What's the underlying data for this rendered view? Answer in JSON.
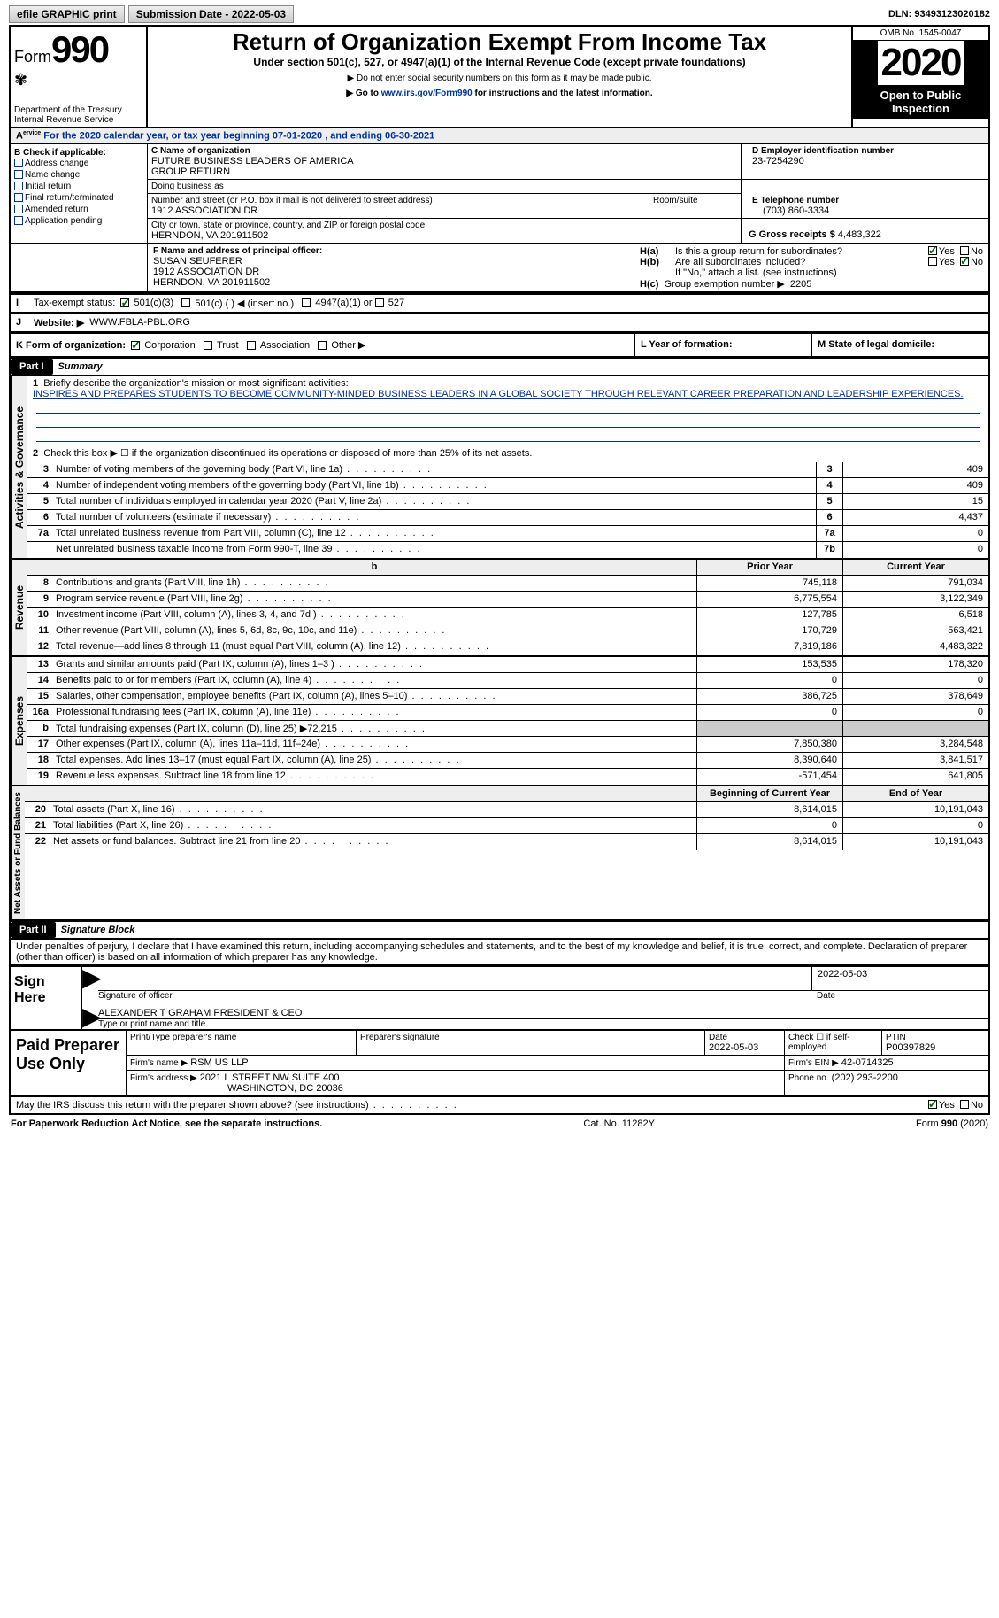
{
  "topbar": {
    "btn1": "efile GRAPHIC print",
    "btn2_label": "Submission Date -",
    "btn2_value": "2022-05-03",
    "dln_label": "DLN:",
    "dln_value": "93493123020182"
  },
  "header": {
    "form_prefix": "Form",
    "form_num": "990",
    "dept": "Department of the Treasury\nInternal Revenue Service",
    "title": "Return of Organization Exempt From Income Tax",
    "sub1": "Under section 501(c), 527, or 4947(a)(1) of the Internal Revenue Code (except private foundations)",
    "sub2": "▶ Do not enter social security numbers on this form as it may be made public.",
    "sub3a": "▶ Go to ",
    "sub3link": "www.irs.gov/Form990",
    "sub3b": " for instructions and the latest information.",
    "omb": "OMB No. 1545-0047",
    "year": "2020",
    "open": "Open to Public Inspection"
  },
  "line_a": "For the 2020 calendar year, or tax year beginning 07-01-2020   , and ending 06-30-2021",
  "box_b": {
    "label": "B Check if applicable:",
    "opts": [
      "Address change",
      "Name change",
      "Initial return",
      "Final return/terminated",
      "Amended return",
      "Application pending"
    ]
  },
  "box_c": {
    "label_c": "C Name of organization",
    "name": "FUTURE BUSINESS LEADERS OF AMERICA\nGROUP RETURN",
    "dba_label": "Doing business as",
    "dba": "",
    "street_label": "Number and street (or P.O. box if mail is not delivered to street address)",
    "room_label": "Room/suite",
    "street": "1912 ASSOCIATION DR",
    "city_label": "City or town, state or province, country, and ZIP or foreign postal code",
    "city": "HERNDON, VA  201911502"
  },
  "box_d": {
    "label": "D Employer identification number",
    "value": "23-7254290"
  },
  "box_e": {
    "label": "E Telephone number",
    "value": "(703) 860-3334"
  },
  "box_g": {
    "label": "G Gross receipts $",
    "value": "4,483,322"
  },
  "box_f": {
    "label": "F Name and address of principal officer:",
    "name": "SUSAN SEUFERER",
    "addr1": "1912 ASSOCIATION DR",
    "addr2": "HERNDON, VA  201911502"
  },
  "box_h": {
    "a_label": "Is this a group return for subordinates?",
    "a_yes": true,
    "b_label": "Are all subordinates included?",
    "b_no": true,
    "b_note": "If \"No,\" attach a list. (see instructions)",
    "c_label": "Group exemption number ▶",
    "c_value": "2205"
  },
  "row_i": {
    "label": "Tax-exempt status:",
    "opts": [
      "501(c)(3)",
      "501(c) (  ) ◀ (insert no.)",
      "4947(a)(1) or",
      "527"
    ],
    "checked": 0
  },
  "row_j": {
    "label": "Website: ▶",
    "value": "WWW.FBLA-PBL.ORG"
  },
  "row_k": {
    "label": "K Form of organization:",
    "opts": [
      "Corporation",
      "Trust",
      "Association",
      "Other ▶"
    ],
    "checked": 0
  },
  "row_l": {
    "label": "L Year of formation:",
    "value": ""
  },
  "row_m": {
    "label": "M State of legal domicile:",
    "value": ""
  },
  "part1": {
    "tab": "Part I",
    "title": "Summary",
    "l1_label": "Briefly describe the organization's mission or most significant activities:",
    "l1_text": "INSPIRES AND PREPARES STUDENTS TO BECOME COMMUNITY-MINDED BUSINESS LEADERS IN A GLOBAL SOCIETY THROUGH RELEVANT CAREER PREPARATION AND LEADERSHIP EXPERIENCES.",
    "l2": "Check this box ▶ ☐  if the organization discontinued its operations or disposed of more than 25% of its net assets.",
    "rows_gov": [
      {
        "n": "3",
        "d": "Number of voting members of the governing body (Part VI, line 1a)",
        "box": "3",
        "v": "409"
      },
      {
        "n": "4",
        "d": "Number of independent voting members of the governing body (Part VI, line 1b)",
        "box": "4",
        "v": "409"
      },
      {
        "n": "5",
        "d": "Total number of individuals employed in calendar year 2020 (Part V, line 2a)",
        "box": "5",
        "v": "15"
      },
      {
        "n": "6",
        "d": "Total number of volunteers (estimate if necessary)",
        "box": "6",
        "v": "4,437"
      },
      {
        "n": "7a",
        "d": "Total unrelated business revenue from Part VIII, column (C), line 12",
        "box": "7a",
        "v": "0"
      },
      {
        "n": "",
        "d": "Net unrelated business taxable income from Form 990-T, line 39",
        "box": "7b",
        "v": "0"
      }
    ],
    "hdr_prior": "Prior Year",
    "hdr_curr": "Current Year",
    "revenue": [
      {
        "n": "8",
        "d": "Contributions and grants (Part VIII, line 1h)",
        "p": "745,118",
        "c": "791,034"
      },
      {
        "n": "9",
        "d": "Program service revenue (Part VIII, line 2g)",
        "p": "6,775,554",
        "c": "3,122,349"
      },
      {
        "n": "10",
        "d": "Investment income (Part VIII, column (A), lines 3, 4, and 7d )",
        "p": "127,785",
        "c": "6,518"
      },
      {
        "n": "11",
        "d": "Other revenue (Part VIII, column (A), lines 5, 6d, 8c, 9c, 10c, and 11e)",
        "p": "170,729",
        "c": "563,421"
      },
      {
        "n": "12",
        "d": "Total revenue—add lines 8 through 11 (must equal Part VIII, column (A), line 12)",
        "p": "7,819,186",
        "c": "4,483,322"
      }
    ],
    "expenses": [
      {
        "n": "13",
        "d": "Grants and similar amounts paid (Part IX, column (A), lines 1–3 )",
        "p": "153,535",
        "c": "178,320"
      },
      {
        "n": "14",
        "d": "Benefits paid to or for members (Part IX, column (A), line 4)",
        "p": "0",
        "c": "0"
      },
      {
        "n": "15",
        "d": "Salaries, other compensation, employee benefits (Part IX, column (A), lines 5–10)",
        "p": "386,725",
        "c": "378,649"
      },
      {
        "n": "16a",
        "d": "Professional fundraising fees (Part IX, column (A), line 11e)",
        "p": "0",
        "c": "0"
      },
      {
        "n": "b",
        "d": "Total fundraising expenses (Part IX, column (D), line 25) ▶72,215",
        "p": "",
        "c": "",
        "grey": true
      },
      {
        "n": "17",
        "d": "Other expenses (Part IX, column (A), lines 11a–11d, 11f–24e)",
        "p": "7,850,380",
        "c": "3,284,548"
      },
      {
        "n": "18",
        "d": "Total expenses. Add lines 13–17 (must equal Part IX, column (A), line 25)",
        "p": "8,390,640",
        "c": "3,841,517"
      },
      {
        "n": "19",
        "d": "Revenue less expenses. Subtract line 18 from line 12",
        "p": "-571,454",
        "c": "641,805"
      }
    ],
    "hdr_begin": "Beginning of Current Year",
    "hdr_end": "End of Year",
    "netassets": [
      {
        "n": "20",
        "d": "Total assets (Part X, line 16)",
        "p": "8,614,015",
        "c": "10,191,043"
      },
      {
        "n": "21",
        "d": "Total liabilities (Part X, line 26)",
        "p": "0",
        "c": "0"
      },
      {
        "n": "22",
        "d": "Net assets or fund balances. Subtract line 21 from line 20",
        "p": "8,614,015",
        "c": "10,191,043"
      }
    ],
    "side_gov": "Activities & Governance",
    "side_rev": "Revenue",
    "side_exp": "Expenses",
    "side_net": "Net Assets or Fund Balances"
  },
  "part2": {
    "tab": "Part II",
    "title": "Signature Block",
    "decl": "Under penalties of perjury, I declare that I have examined this return, including accompanying schedules and statements, and to the best of my knowledge and belief, it is true, correct, and complete. Declaration of preparer (other than officer) is based on all information of which preparer has any knowledge.",
    "sign_here": "Sign Here",
    "sig_officer_label": "Signature of officer",
    "sig_date": "2022-05-03",
    "sig_date_label": "Date",
    "officer_name": "ALEXANDER T GRAHAM  PRESIDENT & CEO",
    "officer_name_label": "Type or print name and title",
    "paid_label": "Paid Preparer Use Only",
    "prep_hdrs": [
      "Print/Type preparer's name",
      "Preparer's signature",
      "Date",
      "Check ☐ if self-employed",
      "PTIN"
    ],
    "prep_date": "2022-05-03",
    "ptin": "P00397829",
    "firm_name_label": "Firm's name   ▶",
    "firm_name": "RSM US LLP",
    "firm_ein_label": "Firm's EIN ▶",
    "firm_ein": "42-0714325",
    "firm_addr_label": "Firm's address ▶",
    "firm_addr1": "2021 L STREET NW SUITE 400",
    "firm_addr2": "WASHINGTON, DC  20036",
    "phone_label": "Phone no.",
    "phone": "(202) 293-2200",
    "discuss": "May the IRS discuss this return with the preparer shown above? (see instructions)",
    "discuss_yes": true
  },
  "footer": {
    "left": "For Paperwork Reduction Act Notice, see the separate instructions.",
    "mid": "Cat. No. 11282Y",
    "right": "Form 990 (2020)"
  }
}
